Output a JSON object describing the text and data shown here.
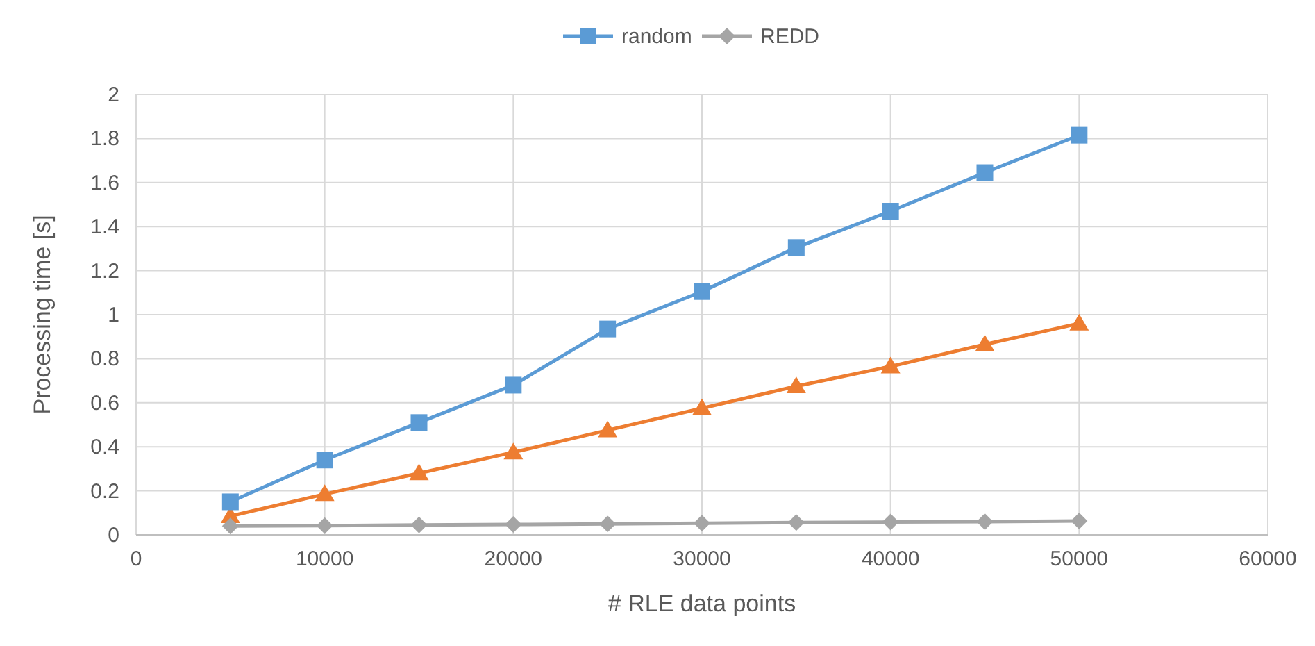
{
  "chart_data": {
    "type": "line",
    "xlabel": "# RLE data points",
    "ylabel": "Processing time [s]",
    "x": [
      5000,
      10000,
      15000,
      20000,
      25000,
      30000,
      35000,
      40000,
      45000,
      50000
    ],
    "series": [
      {
        "color": "#ed7d31",
        "marker": "triangle",
        "values": [
          0.085,
          0.185,
          0.28,
          0.375,
          0.475,
          0.575,
          0.675,
          0.765,
          0.865,
          0.96
        ]
      },
      {
        "name": "random",
        "color": "#5b9bd5",
        "marker": "square",
        "values": [
          0.15,
          0.34,
          0.51,
          0.68,
          0.935,
          1.105,
          1.305,
          1.47,
          1.645,
          1.815
        ]
      },
      {
        "name": "REDD",
        "color": "#a5a5a5",
        "marker": "diamond",
        "values": [
          0.04,
          0.042,
          0.045,
          0.047,
          0.05,
          0.053,
          0.056,
          0.058,
          0.06,
          0.063
        ]
      }
    ],
    "xlim": [
      0,
      60000
    ],
    "xticks": [
      0,
      10000,
      20000,
      30000,
      40000,
      50000,
      60000
    ],
    "ylim": [
      0,
      2
    ],
    "yticks": [
      0,
      0.2,
      0.4,
      0.6,
      0.8,
      1,
      1.2,
      1.4,
      1.6,
      1.8,
      2
    ],
    "grid": true,
    "legend": "top"
  }
}
